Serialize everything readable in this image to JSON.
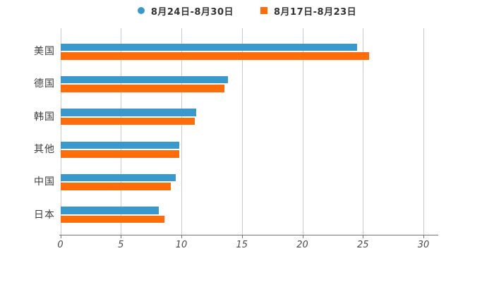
{
  "chart_data": {
    "type": "bar",
    "orientation": "horizontal",
    "title": "",
    "xlabel": "",
    "ylabel": "",
    "categories": [
      "美国",
      "德国",
      "韩国",
      "其他",
      "中国",
      "日本"
    ],
    "series": [
      {
        "name": "8月24日-8月30日",
        "color": "#3A99CC",
        "marker": "circle",
        "values": [
          24.5,
          13.8,
          11.2,
          9.8,
          9.5,
          8.1
        ]
      },
      {
        "name": "8月17日-8月23日",
        "color": "#FF6D0B",
        "marker": "square",
        "values": [
          25.5,
          13.5,
          11.1,
          9.8,
          9.1,
          8.6
        ]
      }
    ],
    "x_ticks": [
      0,
      5,
      10,
      15,
      20,
      25,
      30
    ],
    "xlim": [
      0,
      31.2
    ],
    "grid": true,
    "gridline_color": "#cccccc",
    "axis_color": "#757575",
    "legend_position": "top-center",
    "background_color": "#ffffff"
  }
}
